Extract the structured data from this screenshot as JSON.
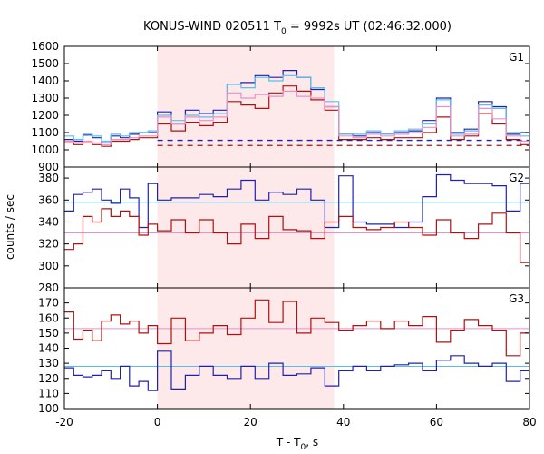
{
  "chart_data": {
    "type": "line",
    "title_main": "KONUS-WIND 020511 T",
    "title_sub": "0",
    "title_rest": " = 9992s UT (02:46:32.000)",
    "xlabel_main": "T - T",
    "xlabel_sub": "0",
    "xlabel_rest": ", s",
    "ylabel": "counts / sec",
    "xlim": [
      -20,
      80
    ],
    "x_ticks": [
      -20,
      0,
      20,
      40,
      60,
      80
    ],
    "shaded_interval": [
      0,
      38
    ],
    "colors": {
      "blue": "#2020b0",
      "red": "#b01010",
      "cyan": "#58c0e8",
      "pink": "#e890c8",
      "shade": "#fde8ea"
    },
    "panels": [
      {
        "label": "G1",
        "ylim": [
          900,
          1600
        ],
        "y_ticks": [
          900,
          1000,
          1100,
          1200,
          1300,
          1400,
          1500,
          1600
        ],
        "bin_edges": [
          -20,
          -18,
          -16,
          -14,
          -12,
          -10,
          -8,
          -6,
          -4,
          -2,
          0,
          3,
          6,
          9,
          12,
          15,
          18,
          21,
          24,
          27,
          30,
          33,
          36,
          39,
          42,
          45,
          48,
          51,
          54,
          57,
          60,
          63,
          66,
          69,
          72,
          75,
          78,
          80
        ],
        "series": [
          {
            "color_key": "blue",
            "values": [
              1060,
              1050,
              1085,
              1070,
              1040,
              1080,
              1070,
              1090,
              1100,
              1100,
              1220,
              1150,
              1230,
              1210,
              1230,
              1380,
              1390,
              1430,
              1420,
              1460,
              1420,
              1350,
              1250,
              1090,
              1080,
              1100,
              1090,
              1100,
              1110,
              1170,
              1300,
              1100,
              1120,
              1280,
              1250,
              1090,
              1100
            ]
          },
          {
            "color_key": "red",
            "values": [
              1040,
              1030,
              1040,
              1030,
              1020,
              1050,
              1050,
              1060,
              1070,
              1070,
              1150,
              1110,
              1160,
              1140,
              1160,
              1280,
              1260,
              1240,
              1330,
              1370,
              1340,
              1290,
              1230,
              1060,
              1060,
              1070,
              1060,
              1070,
              1070,
              1100,
              1190,
              1060,
              1080,
              1210,
              1150,
              1060,
              1030
            ]
          },
          {
            "color_key": "cyan",
            "values": [
              1080,
              1060,
              1090,
              1080,
              1050,
              1090,
              1080,
              1100,
              1100,
              1110,
              1200,
              1170,
              1200,
              1190,
              1210,
              1380,
              1360,
              1420,
              1400,
              1430,
              1420,
              1360,
              1280,
              1090,
              1090,
              1110,
              1090,
              1110,
              1120,
              1150,
              1290,
              1090,
              1110,
              1260,
              1240,
              1100,
              1080
            ]
          },
          {
            "color_key": "pink",
            "values": [
              1050,
              1040,
              1050,
              1040,
              1030,
              1060,
              1060,
              1070,
              1080,
              1080,
              1190,
              1150,
              1190,
              1170,
              1190,
              1330,
              1300,
              1320,
              1310,
              1340,
              1310,
              1300,
              1250,
              1080,
              1070,
              1090,
              1080,
              1090,
              1100,
              1130,
              1250,
              1080,
              1090,
              1240,
              1180,
              1080,
              1050
            ]
          }
        ],
        "baselines": [
          {
            "color_key": "blue",
            "value": 1055,
            "dashed": true,
            "from": 0
          },
          {
            "color_key": "red",
            "value": 1025,
            "dashed": true,
            "from": 0
          }
        ]
      },
      {
        "label": "G2",
        "ylim": [
          280,
          390
        ],
        "y_ticks": [
          280,
          300,
          320,
          340,
          360,
          380
        ],
        "bin_edges": [
          -20,
          -18,
          -16,
          -14,
          -12,
          -10,
          -8,
          -6,
          -4,
          -2,
          0,
          3,
          6,
          9,
          12,
          15,
          18,
          21,
          24,
          27,
          30,
          33,
          36,
          39,
          42,
          45,
          48,
          51,
          54,
          57,
          60,
          63,
          66,
          69,
          72,
          75,
          78,
          80
        ],
        "series": [
          {
            "color_key": "blue",
            "values": [
              350,
              365,
              367,
              370,
              360,
              357,
              370,
              362,
              335,
              375,
              360,
              362,
              362,
              365,
              363,
              370,
              378,
              360,
              367,
              365,
              370,
              360,
              335,
              382,
              340,
              338,
              338,
              335,
              340,
              363,
              383,
              378,
              375,
              375,
              373,
              350,
              375
            ]
          },
          {
            "color_key": "red",
            "values": [
              315,
              320,
              345,
              340,
              352,
              345,
              350,
              345,
              328,
              338,
              332,
              342,
              330,
              342,
              330,
              320,
              338,
              325,
              345,
              333,
              332,
              325,
              340,
              345,
              335,
              333,
              335,
              340,
              335,
              328,
              342,
              330,
              325,
              338,
              348,
              330,
              303
            ]
          }
        ],
        "baselines": [
          {
            "color_key": "cyan",
            "value": 358,
            "dashed": false,
            "from": -20
          },
          {
            "color_key": "pink",
            "value": 330,
            "dashed": false,
            "from": -20
          }
        ]
      },
      {
        "label": "G3",
        "ylim": [
          100,
          180
        ],
        "y_ticks": [
          100,
          110,
          120,
          130,
          140,
          150,
          160,
          170
        ],
        "bin_edges": [
          -20,
          -18,
          -16,
          -14,
          -12,
          -10,
          -8,
          -6,
          -4,
          -2,
          0,
          3,
          6,
          9,
          12,
          15,
          18,
          21,
          24,
          27,
          30,
          33,
          36,
          39,
          42,
          45,
          48,
          51,
          54,
          57,
          60,
          63,
          66,
          69,
          72,
          75,
          78,
          80
        ],
        "series": [
          {
            "color_key": "red",
            "values": [
              164,
              146,
              152,
              145,
              158,
              162,
              156,
              158,
              150,
              155,
              143,
              160,
              145,
              150,
              155,
              149,
              160,
              172,
              157,
              171,
              150,
              160,
              157,
              152,
              155,
              158,
              153,
              158,
              155,
              161,
              144,
              152,
              159,
              155,
              152,
              135,
              150
            ]
          },
          {
            "color_key": "blue",
            "values": [
              127,
              122,
              121,
              122,
              125,
              120,
              128,
              115,
              118,
              112,
              138,
              113,
              122,
              128,
              122,
              120,
              128,
              120,
              130,
              122,
              123,
              127,
              115,
              125,
              128,
              125,
              128,
              129,
              130,
              125,
              132,
              135,
              130,
              128,
              130,
              118,
              125
            ]
          }
        ],
        "baselines": [
          {
            "color_key": "pink",
            "value": 153,
            "dashed": false,
            "from": -20
          },
          {
            "color_key": "cyan",
            "value": 128,
            "dashed": false,
            "from": -20
          }
        ]
      }
    ]
  }
}
